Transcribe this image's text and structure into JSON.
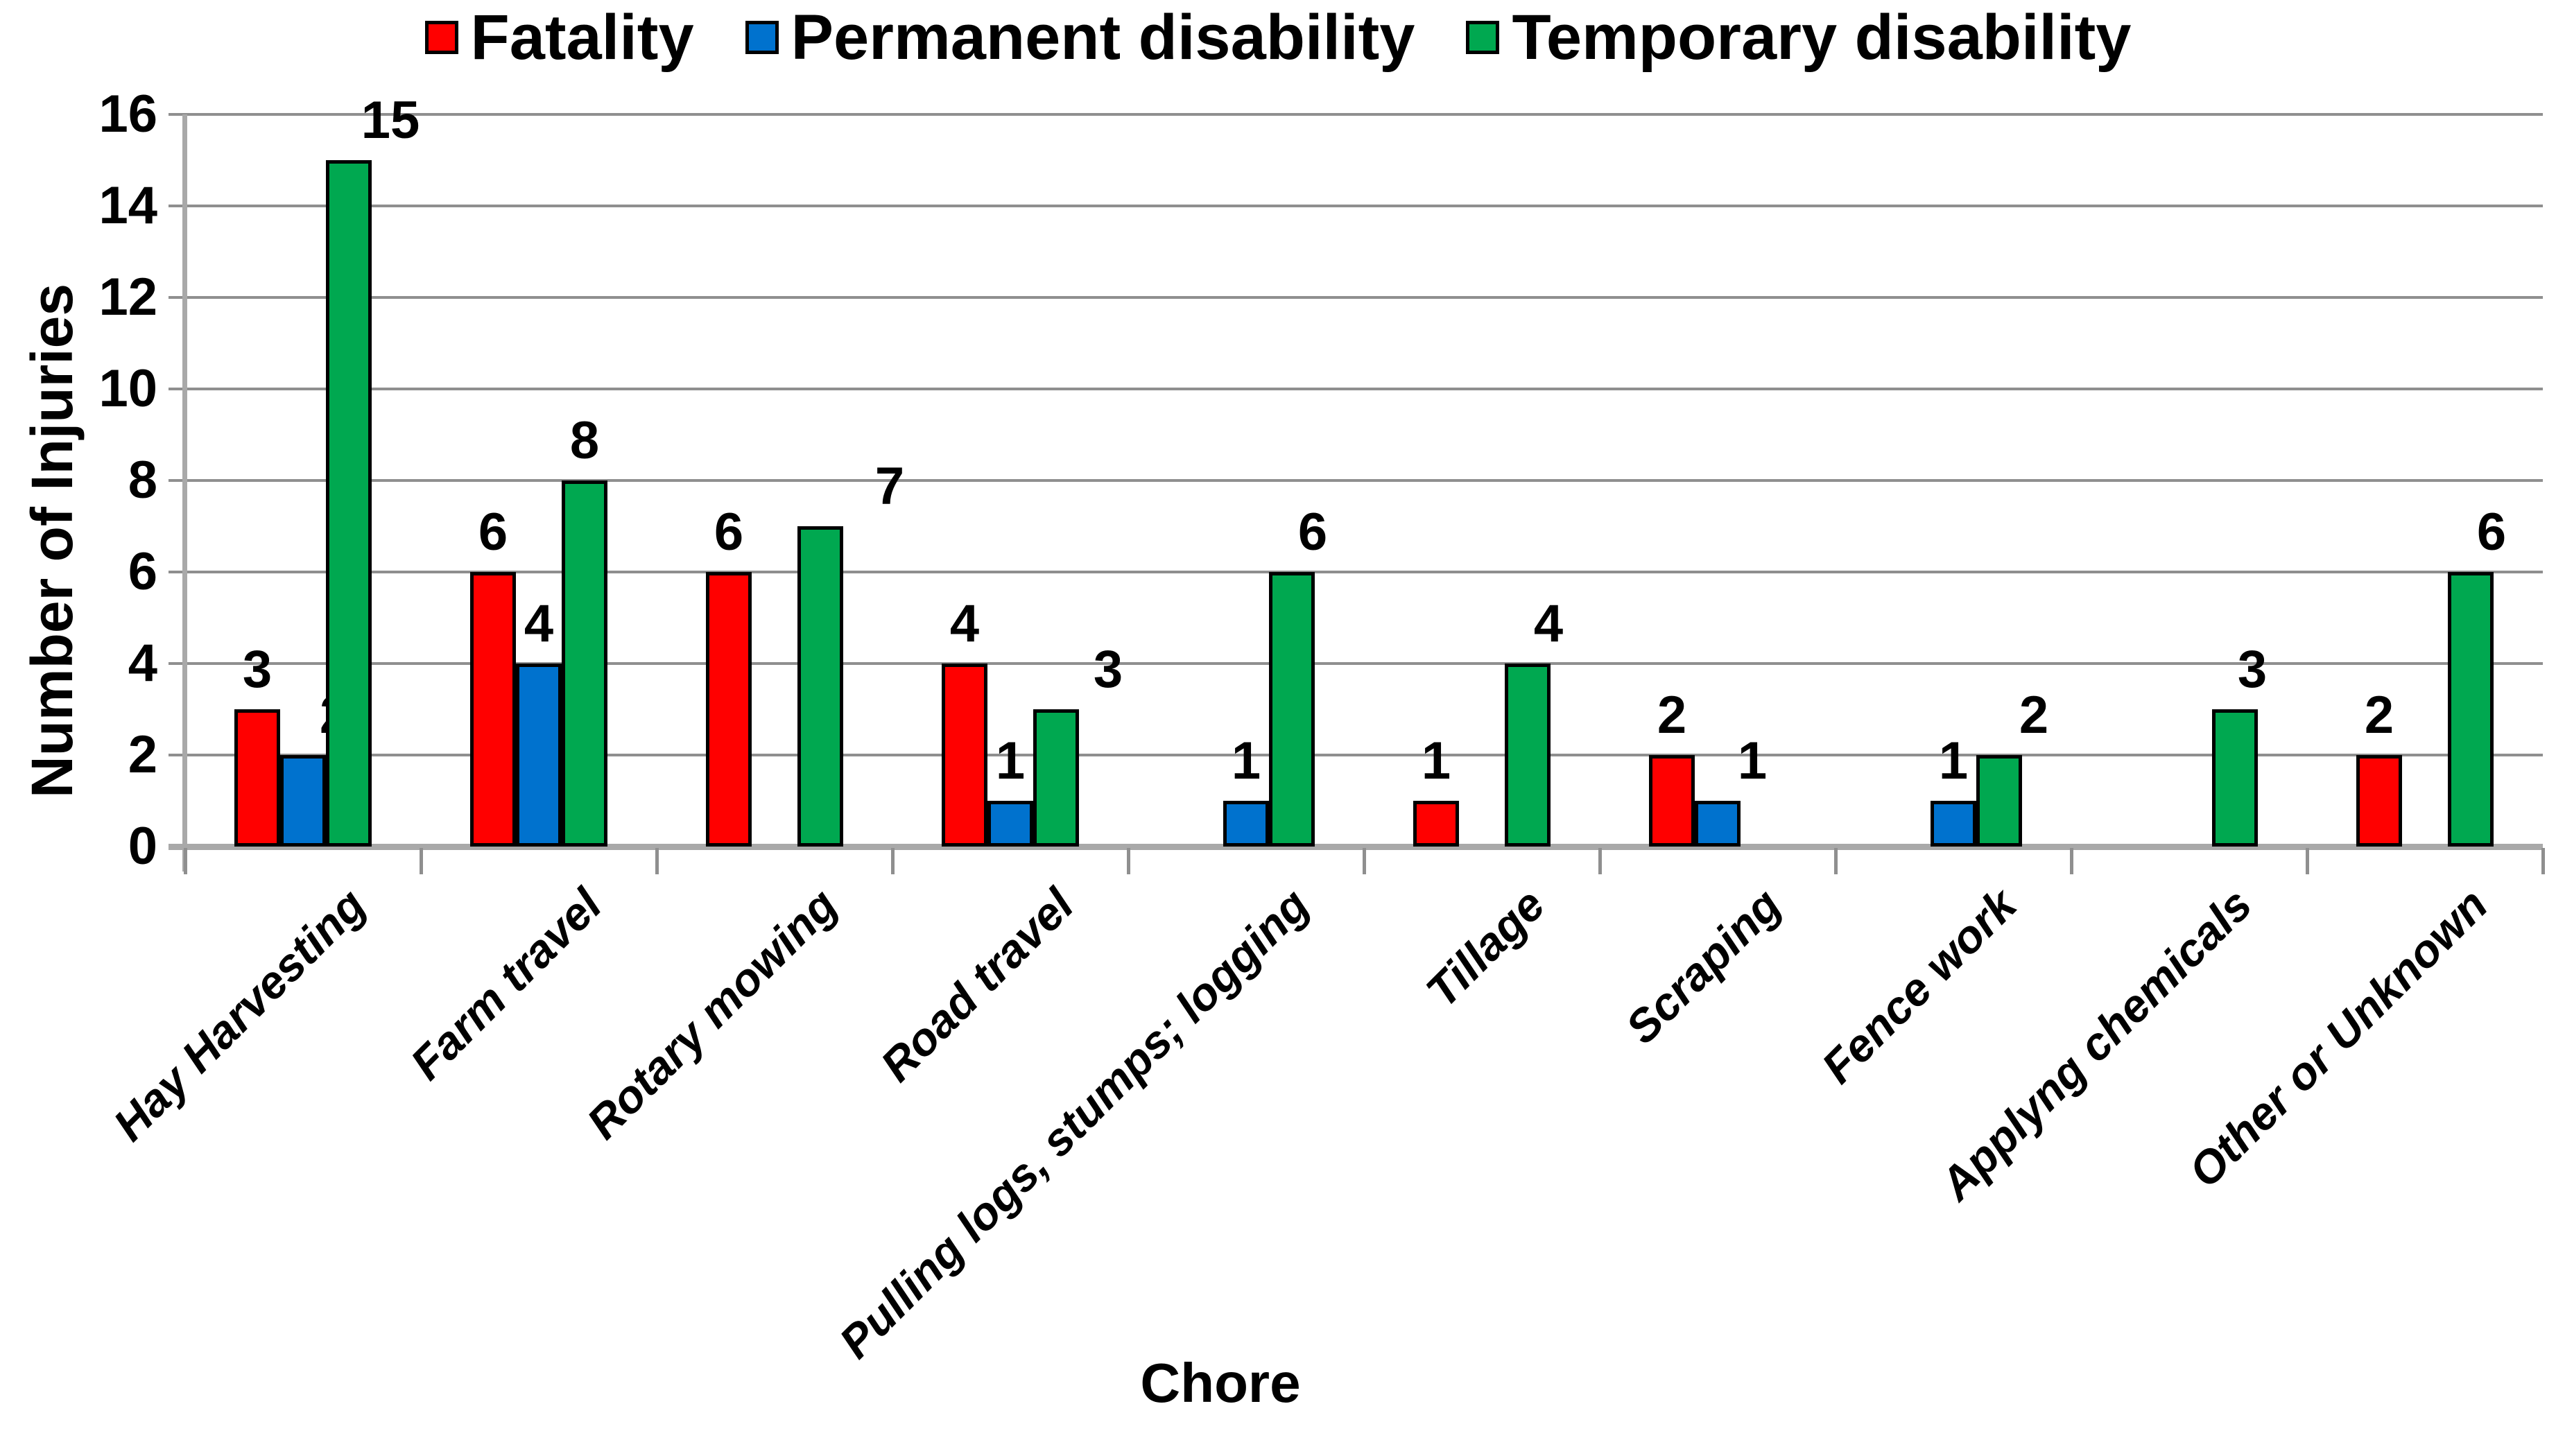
{
  "chart_data": {
    "type": "bar",
    "title": "",
    "xlabel": "Chore",
    "ylabel": "Number of Injuries",
    "ylim": [
      0,
      16
    ],
    "ytick_step": 2,
    "grid": true,
    "legend_position": "top",
    "categories": [
      "Hay Harvesting",
      "Farm travel",
      "Rotary mowing",
      "Road travel",
      "Pulling logs, stumps; logging",
      "Tillage",
      "Scraping",
      "Fence work",
      "Applyng chemicals",
      "Other or Unknown"
    ],
    "series": [
      {
        "name": "Fatality",
        "color": "#ff0000",
        "values": [
          3,
          6,
          6,
          4,
          0,
          1,
          2,
          0,
          0,
          2
        ]
      },
      {
        "name": "Permanent disability",
        "color": "#0072ce",
        "values": [
          2,
          4,
          0,
          1,
          1,
          0,
          1,
          1,
          0,
          0
        ]
      },
      {
        "name": "Temporary disability",
        "color": "#00a850",
        "values": [
          15,
          8,
          7,
          3,
          6,
          4,
          0,
          2,
          3,
          6
        ]
      }
    ],
    "colors": {
      "gridline": "#8f8f8f",
      "axis": "#a9a9a9",
      "bar_outline": "#000000"
    }
  }
}
